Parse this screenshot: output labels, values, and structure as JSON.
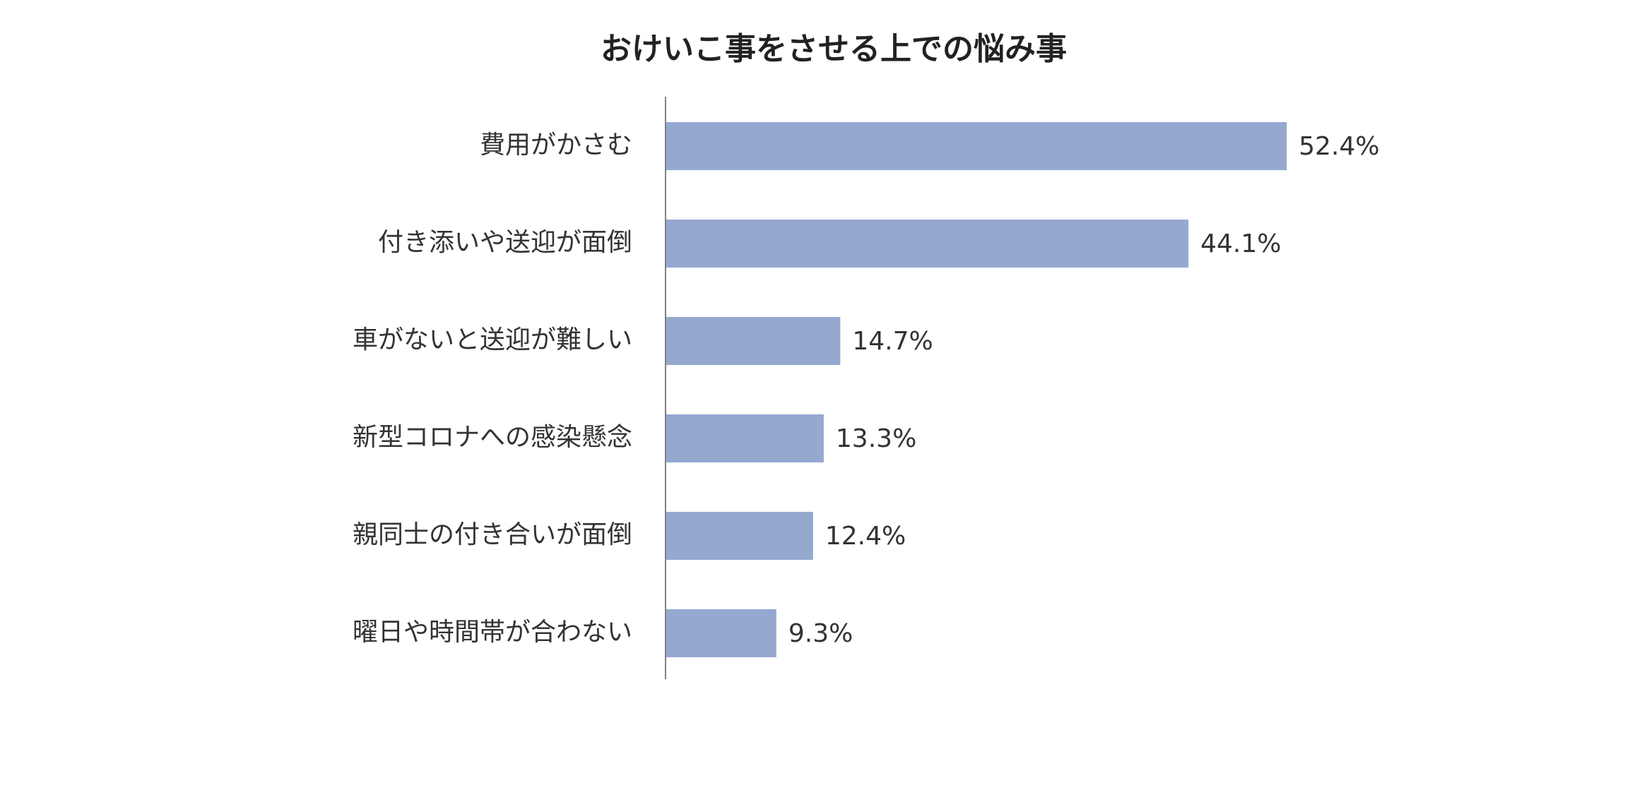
{
  "chart_data": {
    "type": "bar",
    "orientation": "horizontal",
    "title": "おけいこ事をさせる上での悩み事",
    "categories": [
      "費用がかさむ",
      "付き添いや送迎が面倒",
      "車がないと送迎が難しい",
      "新型コロナへの感染懸念",
      "親同士の付き合いが面倒",
      "曜日や時間帯が合わない"
    ],
    "values": [
      52.4,
      44.1,
      14.7,
      13.3,
      12.4,
      9.3
    ],
    "value_labels": [
      "52.4%",
      "44.1%",
      "14.7%",
      "13.3%",
      "12.4%",
      "9.3%"
    ],
    "xlim": [
      0,
      100
    ],
    "xlabel": "",
    "ylabel": "",
    "grid": false,
    "legend": "none",
    "bar_color": "#95A8D0",
    "axis_color": "#808080"
  }
}
